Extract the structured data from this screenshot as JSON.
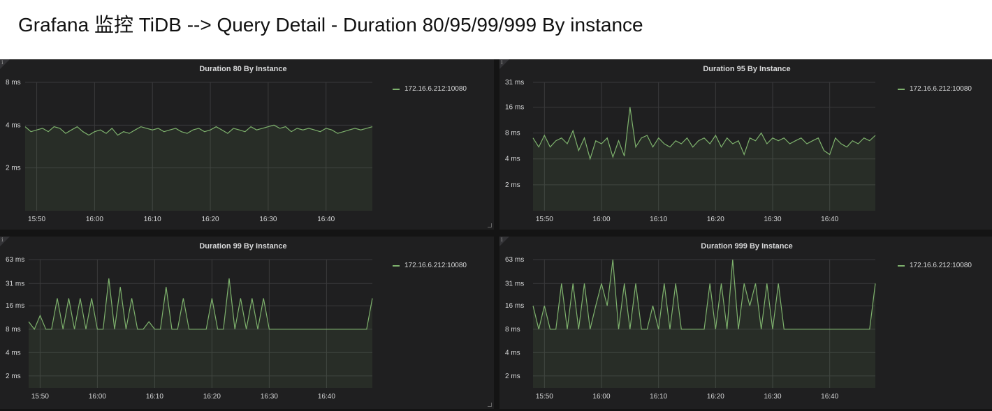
{
  "title": "Grafana 监控 TiDB --> Query Detail - Duration 80/95/99/999 By instance",
  "theme": {
    "line": "#7eb26d",
    "fill": "#7eb26d",
    "grid": "#3a3a3c"
  },
  "icons": {
    "info": "info-icon",
    "resize": "resize-handle-icon"
  },
  "panels": [
    {
      "title": "Duration 80 By Instance",
      "legend": "172.16.6.212:10080",
      "info": "i"
    },
    {
      "title": "Duration 95 By Instance",
      "legend": "172.16.6.212:10080",
      "info": "i"
    },
    {
      "title": "Duration 99 By Instance",
      "legend": "172.16.6.212:10080",
      "info": "i"
    },
    {
      "title": "Duration 999 By Instance",
      "legend": "172.16.6.212:10080",
      "info": "i"
    }
  ],
  "chart_data": [
    {
      "type": "area",
      "title": "Duration 80 By Instance",
      "y_scale": "log2",
      "y_ticks": [
        {
          "value": 2,
          "label": "2 ms"
        },
        {
          "value": 4,
          "label": "4 ms"
        },
        {
          "value": 8,
          "label": "8 ms"
        }
      ],
      "ylim": [
        1,
        8
      ],
      "x_ticks": [
        "15:50",
        "16:00",
        "16:10",
        "16:20",
        "16:30",
        "16:40"
      ],
      "xlim": [
        "15:48",
        "16:48"
      ],
      "series": [
        {
          "name": "172.16.6.212:10080",
          "x": [
            "15:48",
            "15:49",
            "15:50",
            "15:51",
            "15:52",
            "15:53",
            "15:54",
            "15:55",
            "15:56",
            "15:57",
            "15:58",
            "15:59",
            "16:00",
            "16:01",
            "16:02",
            "16:03",
            "16:04",
            "16:05",
            "16:06",
            "16:07",
            "16:08",
            "16:09",
            "16:10",
            "16:11",
            "16:12",
            "16:13",
            "16:14",
            "16:15",
            "16:16",
            "16:17",
            "16:18",
            "16:19",
            "16:20",
            "16:21",
            "16:22",
            "16:23",
            "16:24",
            "16:25",
            "16:26",
            "16:27",
            "16:28",
            "16:29",
            "16:30",
            "16:31",
            "16:32",
            "16:33",
            "16:34",
            "16:35",
            "16:36",
            "16:37",
            "16:38",
            "16:39",
            "16:40",
            "16:41",
            "16:42",
            "16:43",
            "16:44",
            "16:45",
            "16:46",
            "16:47",
            "16:48"
          ],
          "y": [
            3.9,
            3.6,
            3.7,
            3.8,
            3.6,
            3.9,
            3.8,
            3.5,
            3.7,
            3.9,
            3.6,
            3.4,
            3.6,
            3.7,
            3.5,
            3.8,
            3.4,
            3.6,
            3.5,
            3.7,
            3.9,
            3.8,
            3.7,
            3.8,
            3.6,
            3.7,
            3.8,
            3.6,
            3.5,
            3.7,
            3.8,
            3.6,
            3.7,
            3.9,
            3.7,
            3.5,
            3.8,
            3.7,
            3.6,
            3.9,
            3.7,
            3.8,
            3.9,
            4.0,
            3.8,
            3.9,
            3.6,
            3.8,
            3.7,
            3.8,
            3.7,
            3.6,
            3.8,
            3.7,
            3.5,
            3.6,
            3.7,
            3.8,
            3.7,
            3.8,
            3.9
          ]
        }
      ]
    },
    {
      "type": "area",
      "title": "Duration 95 By Instance",
      "y_scale": "log2",
      "y_ticks": [
        {
          "value": 2,
          "label": "2 ms"
        },
        {
          "value": 4,
          "label": "4 ms"
        },
        {
          "value": 8,
          "label": "8 ms"
        },
        {
          "value": 16,
          "label": "16 ms"
        },
        {
          "value": 31,
          "label": "31 ms"
        }
      ],
      "ylim": [
        1,
        31
      ],
      "x_ticks": [
        "15:50",
        "16:00",
        "16:10",
        "16:20",
        "16:30",
        "16:40"
      ],
      "xlim": [
        "15:48",
        "16:48"
      ],
      "series": [
        {
          "name": "172.16.6.212:10080",
          "x": [
            "15:48",
            "15:49",
            "15:50",
            "15:51",
            "15:52",
            "15:53",
            "15:54",
            "15:55",
            "15:56",
            "15:57",
            "15:58",
            "15:59",
            "16:00",
            "16:01",
            "16:02",
            "16:03",
            "16:04",
            "16:05",
            "16:06",
            "16:07",
            "16:08",
            "16:09",
            "16:10",
            "16:11",
            "16:12",
            "16:13",
            "16:14",
            "16:15",
            "16:16",
            "16:17",
            "16:18",
            "16:19",
            "16:20",
            "16:21",
            "16:22",
            "16:23",
            "16:24",
            "16:25",
            "16:26",
            "16:27",
            "16:28",
            "16:29",
            "16:30",
            "16:31",
            "16:32",
            "16:33",
            "16:34",
            "16:35",
            "16:36",
            "16:37",
            "16:38",
            "16:39",
            "16:40",
            "16:41",
            "16:42",
            "16:43",
            "16:44",
            "16:45",
            "16:46",
            "16:47",
            "16:48"
          ],
          "y": [
            7,
            5.5,
            7.5,
            5.5,
            6.5,
            7,
            6,
            8.5,
            5,
            7,
            4,
            6.5,
            6,
            7,
            4.2,
            6.5,
            4.3,
            16,
            5.5,
            7,
            7.5,
            5.5,
            7,
            6,
            5.5,
            6.5,
            6,
            7,
            5.5,
            6.5,
            7,
            6,
            7.5,
            5.5,
            7,
            6,
            6.5,
            4.5,
            7,
            6.5,
            8,
            6,
            7,
            6.5,
            7,
            6,
            6.5,
            7,
            6,
            6.5,
            7,
            5,
            4.5,
            7,
            6,
            5.5,
            6.5,
            6,
            7,
            6.5,
            7.5
          ]
        }
      ]
    },
    {
      "type": "area",
      "title": "Duration 99 By Instance",
      "y_scale": "log2",
      "y_ticks": [
        {
          "value": 2,
          "label": "2 ms"
        },
        {
          "value": 4,
          "label": "4 ms"
        },
        {
          "value": 8,
          "label": "8 ms"
        },
        {
          "value": 16,
          "label": "16 ms"
        },
        {
          "value": 31,
          "label": "31 ms"
        },
        {
          "value": 63,
          "label": "63 ms"
        }
      ],
      "ylim": [
        1.4,
        63
      ],
      "x_ticks": [
        "15:50",
        "16:00",
        "16:10",
        "16:20",
        "16:30",
        "16:40"
      ],
      "xlim": [
        "15:48",
        "16:48"
      ],
      "series": [
        {
          "name": "172.16.6.212:10080",
          "x": [
            "15:48",
            "15:49",
            "15:50",
            "15:51",
            "15:52",
            "15:53",
            "15:54",
            "15:55",
            "15:56",
            "15:57",
            "15:58",
            "15:59",
            "16:00",
            "16:01",
            "16:02",
            "16:03",
            "16:04",
            "16:05",
            "16:06",
            "16:07",
            "16:08",
            "16:09",
            "16:10",
            "16:11",
            "16:12",
            "16:13",
            "16:14",
            "16:15",
            "16:16",
            "16:17",
            "16:18",
            "16:19",
            "16:20",
            "16:21",
            "16:22",
            "16:23",
            "16:24",
            "16:25",
            "16:26",
            "16:27",
            "16:28",
            "16:29",
            "16:30",
            "16:31",
            "16:32",
            "16:33",
            "16:34",
            "16:35",
            "16:36",
            "16:37",
            "16:38",
            "16:39",
            "16:40",
            "16:41",
            "16:42",
            "16:43",
            "16:44",
            "16:45",
            "16:46",
            "16:47",
            "16:48"
          ],
          "y": [
            10,
            8,
            12,
            8,
            8,
            20,
            8,
            20,
            8,
            20,
            8,
            20,
            8,
            8,
            36,
            8,
            28,
            8,
            20,
            8,
            8,
            10,
            8,
            8,
            28,
            8,
            8,
            20,
            8,
            8,
            8,
            8,
            20,
            8,
            8,
            36,
            8,
            20,
            8,
            20,
            8,
            20,
            8,
            8,
            8,
            8,
            8,
            8,
            8,
            8,
            8,
            8,
            8,
            8,
            8,
            8,
            8,
            8,
            8,
            8,
            20
          ]
        }
      ]
    },
    {
      "type": "area",
      "title": "Duration 999 By Instance",
      "y_scale": "log2",
      "y_ticks": [
        {
          "value": 2,
          "label": "2 ms"
        },
        {
          "value": 4,
          "label": "4 ms"
        },
        {
          "value": 8,
          "label": "8 ms"
        },
        {
          "value": 16,
          "label": "16 ms"
        },
        {
          "value": 31,
          "label": "31 ms"
        },
        {
          "value": 63,
          "label": "63 ms"
        }
      ],
      "ylim": [
        1.4,
        63
      ],
      "x_ticks": [
        "15:50",
        "16:00",
        "16:10",
        "16:20",
        "16:30",
        "16:40"
      ],
      "xlim": [
        "15:48",
        "16:48"
      ],
      "series": [
        {
          "name": "172.16.6.212:10080",
          "x": [
            "15:48",
            "15:49",
            "15:50",
            "15:51",
            "15:52",
            "15:53",
            "15:54",
            "15:55",
            "15:56",
            "15:57",
            "15:58",
            "15:59",
            "16:00",
            "16:01",
            "16:02",
            "16:03",
            "16:04",
            "16:05",
            "16:06",
            "16:07",
            "16:08",
            "16:09",
            "16:10",
            "16:11",
            "16:12",
            "16:13",
            "16:14",
            "16:15",
            "16:16",
            "16:17",
            "16:18",
            "16:19",
            "16:20",
            "16:21",
            "16:22",
            "16:23",
            "16:24",
            "16:25",
            "16:26",
            "16:27",
            "16:28",
            "16:29",
            "16:30",
            "16:31",
            "16:32",
            "16:33",
            "16:34",
            "16:35",
            "16:36",
            "16:37",
            "16:38",
            "16:39",
            "16:40",
            "16:41",
            "16:42",
            "16:43",
            "16:44",
            "16:45",
            "16:46",
            "16:47",
            "16:48"
          ],
          "y": [
            16,
            8,
            16,
            8,
            8,
            31,
            8,
            31,
            8,
            31,
            8,
            16,
            31,
            16,
            63,
            8,
            31,
            8,
            31,
            8,
            8,
            16,
            8,
            31,
            8,
            31,
            8,
            8,
            8,
            8,
            8,
            31,
            8,
            31,
            8,
            63,
            8,
            31,
            16,
            31,
            8,
            31,
            8,
            31,
            8,
            8,
            8,
            8,
            8,
            8,
            8,
            8,
            8,
            8,
            8,
            8,
            8,
            8,
            8,
            8,
            31
          ]
        }
      ]
    }
  ]
}
